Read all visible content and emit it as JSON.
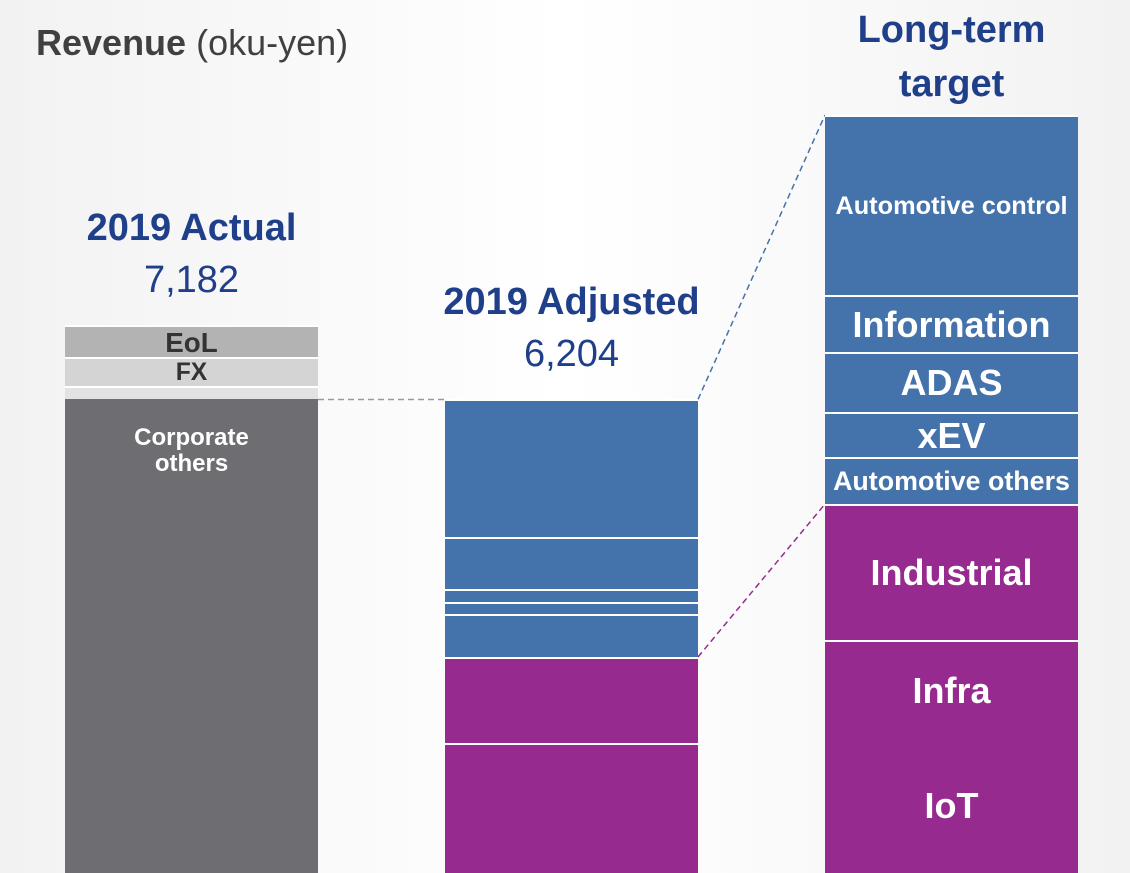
{
  "chart_data": {
    "type": "stacked_bar",
    "title": "Revenue",
    "title_unit": "(oku-yen)",
    "categories": [
      "2019 Actual",
      "2019 Adjusted",
      "Long-term target"
    ],
    "totals": [
      7182,
      6204,
      null
    ],
    "total_labels": [
      "7,182",
      "6,204",
      null
    ],
    "series": [
      {
        "name": null,
        "color": "#6e6e72",
        "values": [
          6204,
          null,
          null
        ]
      },
      {
        "name": "Corporate others",
        "color": "#e2e2e2",
        "values": [
          170,
          null,
          null
        ]
      },
      {
        "name": "FX",
        "color": "#d4d4d4",
        "values": [
          380,
          null,
          null
        ]
      },
      {
        "name": "EoL",
        "color": "#b3b3b3",
        "values": [
          428,
          null,
          null
        ]
      },
      {
        "name": "IoT",
        "color": "#962a8f",
        "values": [
          null,
          1087,
          1755
        ]
      },
      {
        "name": "Infra",
        "color": "#962a8f",
        "values": [
          null,
          616,
          1297
        ]
      },
      {
        "name": "Industrial",
        "color": "#962a8f",
        "values": [
          null,
          1127,
          1782
        ]
      },
      {
        "name": "Automotive others",
        "color": "#4472ab",
        "values": [
          null,
          563,
          616
        ]
      },
      {
        "name": "xEV",
        "color": "#4472ab",
        "values": [
          null,
          157,
          590
        ]
      },
      {
        "name": "ADAS",
        "color": "#4472ab",
        "values": [
          null,
          170,
          786
        ]
      },
      {
        "name": "Information",
        "color": "#4472ab",
        "values": [
          null,
          681,
          747
        ]
      },
      {
        "name": "Automotive control",
        "color": "#4472ab",
        "values": [
          null,
          1803,
          2358
        ]
      }
    ]
  }
}
